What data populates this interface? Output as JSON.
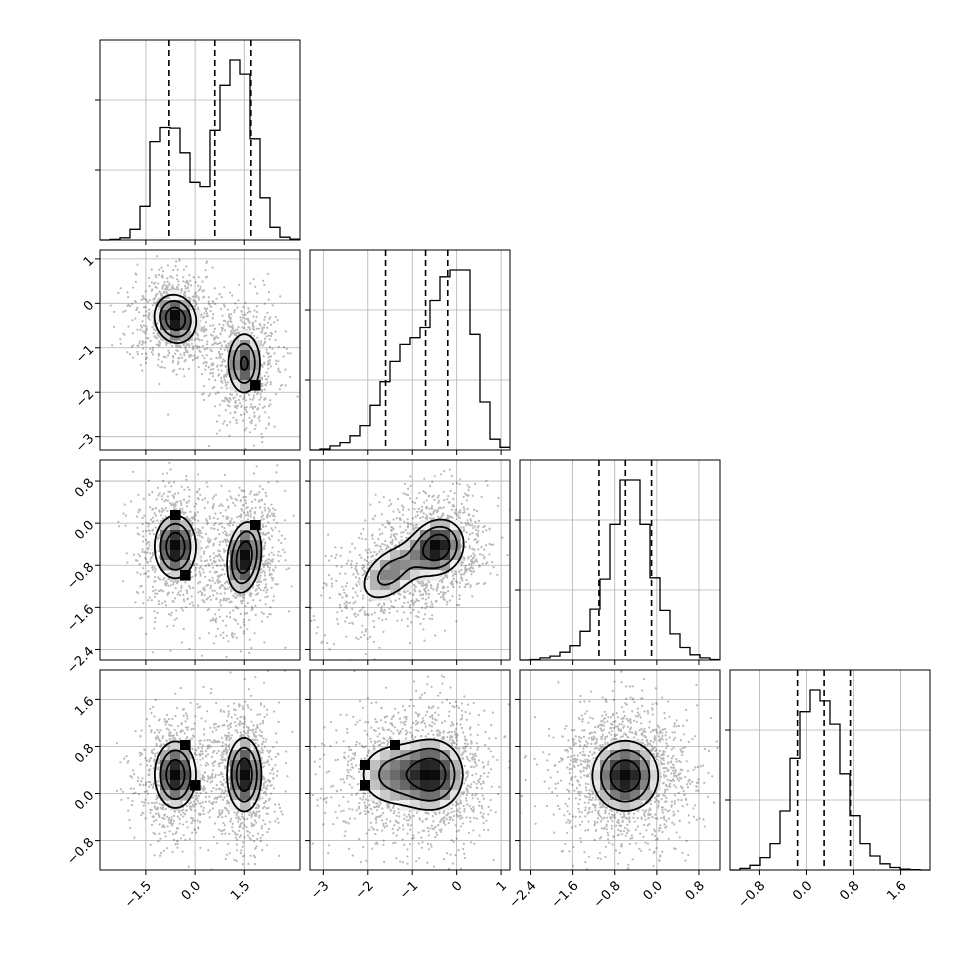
{
  "chart_data": {
    "type": "corner",
    "parameters": 4,
    "params": [
      {
        "range": [
          -2.9,
          3.2
        ],
        "ticks": [
          "−1.5",
          "0.0",
          "1.5"
        ],
        "tick_values": [
          -1.5,
          0.0,
          1.5
        ],
        "quantiles": [
          -0.8,
          0.6,
          1.7
        ],
        "hist_bin_width": 0.305,
        "hist": [
          0,
          2,
          8,
          38,
          120,
          350,
          400,
          398,
          310,
          205,
          190,
          390,
          550,
          640,
          590,
          360,
          150,
          45,
          10,
          3
        ]
      },
      {
        "range": [
          -3.3,
          1.2
        ],
        "ticks": [
          "−3",
          "−2",
          "−1",
          "0",
          "1"
        ],
        "tick_values": [
          -3,
          -2,
          -1,
          0,
          1
        ],
        "quantiles": [
          -1.6,
          -0.7,
          -0.2
        ],
        "hist_bin_width": 0.225,
        "hist": [
          0,
          3,
          12,
          22,
          42,
          72,
          132,
          202,
          262,
          312,
          332,
          362,
          442,
          512,
          532,
          532,
          342,
          142,
          32,
          8
        ]
      },
      {
        "range": [
          -2.6,
          1.2
        ],
        "ticks": [
          "−2.4",
          "−1.6",
          "−0.8",
          "0.0",
          "0.8"
        ],
        "tick_values": [
          -2.4,
          -1.6,
          -0.8,
          0.0,
          0.8
        ],
        "quantiles": [
          -1.1,
          -0.6,
          -0.1
        ],
        "hist_bin_width": 0.19,
        "hist": [
          0,
          2,
          8,
          15,
          30,
          55,
          110,
          195,
          310,
          520,
          690,
          690,
          520,
          315,
          190,
          100,
          48,
          20,
          8,
          2
        ]
      },
      {
        "range": [
          -1.3,
          2.1
        ],
        "ticks": [
          "−0.8",
          "0.0",
          "0.8",
          "1.6"
        ],
        "tick_values": [
          -0.8,
          0.0,
          0.8,
          1.6
        ],
        "quantiles": [
          -0.15,
          0.3,
          0.75
        ],
        "hist_bin_width": 0.17,
        "hist": [
          0,
          5,
          15,
          40,
          85,
          190,
          360,
          510,
          580,
          545,
          470,
          310,
          175,
          85,
          45,
          20,
          8,
          3,
          1,
          0
        ]
      }
    ],
    "pairs": [
      {
        "x": 0,
        "y": 1,
        "modes": [
          {
            "cx": -0.6,
            "cy": -0.35,
            "sx": 0.42,
            "sy": 0.36,
            "rho": -0.1,
            "w": 0.55
          },
          {
            "cx": 1.5,
            "cy": -1.35,
            "sx": 0.35,
            "sy": 0.48,
            "rho": 0.0,
            "w": 0.45
          }
        ]
      },
      {
        "x": 0,
        "y": 2,
        "modes": [
          {
            "cx": -0.6,
            "cy": -0.45,
            "sx": 0.42,
            "sy": 0.4,
            "rho": 0.0,
            "w": 0.5
          },
          {
            "cx": 1.5,
            "cy": -0.65,
            "sx": 0.35,
            "sy": 0.45,
            "rho": 0.2,
            "w": 0.5
          }
        ]
      },
      {
        "x": 1,
        "y": 2,
        "modes": [
          {
            "cx": -0.4,
            "cy": -0.45,
            "sx": 0.38,
            "sy": 0.35,
            "rho": 0.1,
            "w": 0.6
          },
          {
            "cx": -1.5,
            "cy": -0.95,
            "sx": 0.5,
            "sy": 0.4,
            "rho": 0.45,
            "w": 0.4
          }
        ]
      },
      {
        "x": 0,
        "y": 3,
        "modes": [
          {
            "cx": -0.6,
            "cy": 0.32,
            "sx": 0.42,
            "sy": 0.38,
            "rho": 0.0,
            "w": 0.5
          },
          {
            "cx": 1.5,
            "cy": 0.32,
            "sx": 0.35,
            "sy": 0.42,
            "rho": 0.0,
            "w": 0.5
          }
        ]
      },
      {
        "x": 1,
        "y": 3,
        "modes": [
          {
            "cx": -0.5,
            "cy": 0.32,
            "sx": 0.45,
            "sy": 0.4,
            "rho": 0.0,
            "w": 0.6
          },
          {
            "cx": -1.5,
            "cy": 0.32,
            "sx": 0.55,
            "sy": 0.4,
            "rho": 0.0,
            "w": 0.4
          }
        ]
      },
      {
        "x": 2,
        "y": 3,
        "modes": [
          {
            "cx": -0.6,
            "cy": 0.3,
            "sx": 0.42,
            "sy": 0.4,
            "rho": 0.0,
            "w": 1.0
          }
        ]
      }
    ],
    "contour_levels": [
      0.33,
      0.55,
      0.8
    ],
    "grid": true,
    "legend": "none"
  }
}
